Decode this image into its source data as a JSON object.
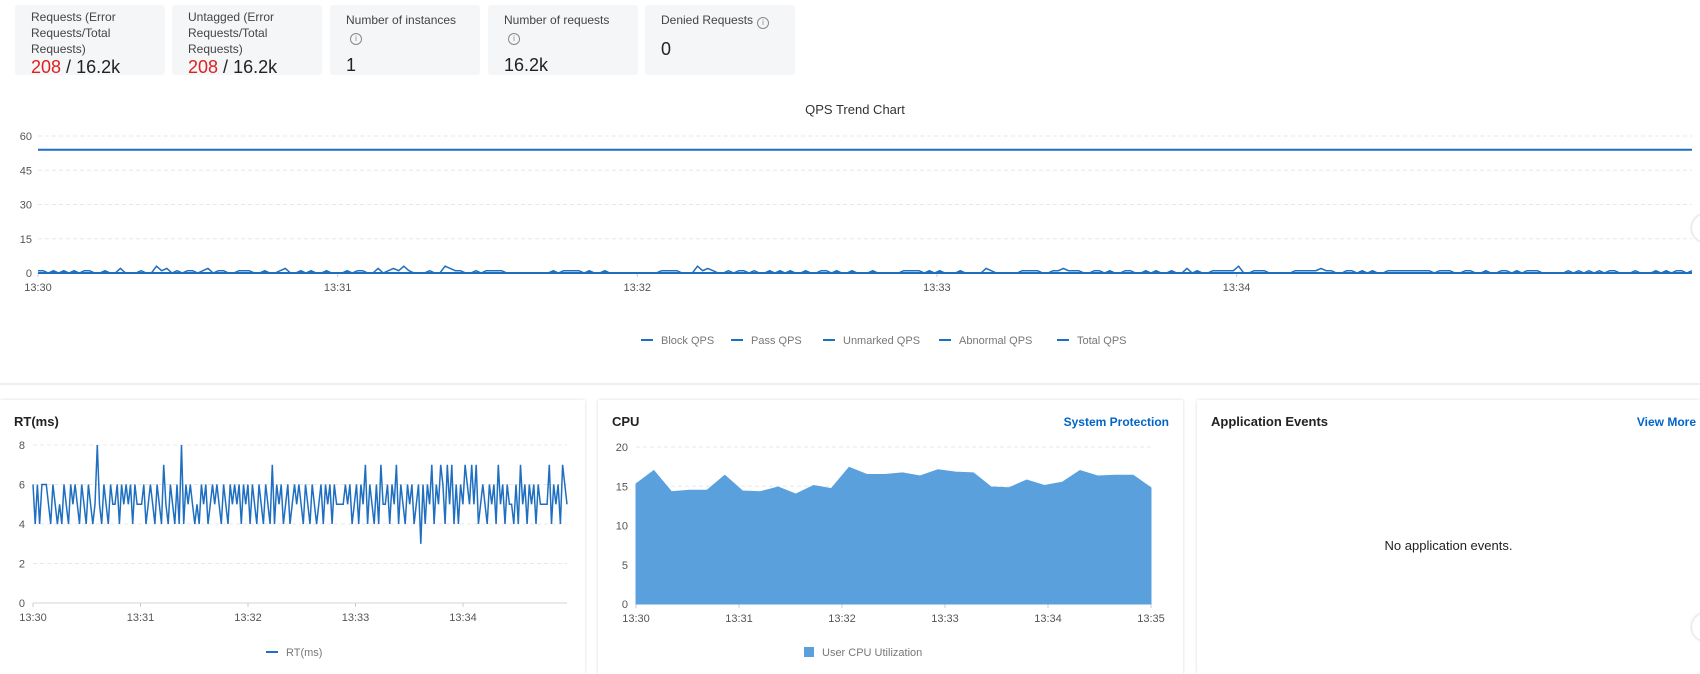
{
  "summary_cards": [
    {
      "label": "Requests (Error Requests/Total Requests)",
      "error_value": "208",
      "separator": " / ",
      "total_value": "16.2k",
      "has_info": true
    },
    {
      "label": "Untagged (Error Requests/Total Requests)",
      "error_value": "208",
      "separator": " / ",
      "total_value": "16.2k",
      "has_info": true
    },
    {
      "label": "Number of instances",
      "value": "1",
      "has_info": true
    },
    {
      "label": "Number of requests",
      "value": "16.2k",
      "has_info": true
    },
    {
      "label": "Denied Requests",
      "value": "0",
      "has_info": true
    }
  ],
  "colors": {
    "series_blue": "#1f6fc0",
    "area_blue": "#5aa0dd",
    "error_red": "#e02020",
    "link_blue": "#0064c8"
  },
  "chart_data": [
    {
      "type": "line",
      "title": "QPS Trend Chart",
      "x_ticks": [
        "13:30",
        "13:31",
        "13:32",
        "13:33",
        "13:34"
      ],
      "y_ticks": [
        "0",
        "15",
        "30",
        "45",
        "60"
      ],
      "ylim": [
        0,
        60
      ],
      "grid": true,
      "legend_position": "bottom-center",
      "series_names": [
        "Block QPS",
        "Pass QPS",
        "Unmarked QPS",
        "Abnormal QPS",
        "Total QPS"
      ],
      "flat_line_value": 54,
      "low_series_values": [
        1,
        1,
        0,
        1,
        0,
        1,
        0,
        1,
        0,
        1,
        1,
        0,
        0,
        1,
        0,
        0,
        2,
        0,
        0,
        0,
        1,
        0,
        0,
        3,
        1,
        2,
        0,
        1,
        0,
        1,
        1,
        0,
        1,
        2,
        0,
        1,
        1,
        0,
        0,
        1,
        1,
        1,
        0,
        0,
        1,
        0,
        0,
        1,
        2,
        0,
        0,
        1,
        0,
        1,
        0,
        0,
        1,
        0,
        0,
        0,
        1,
        0,
        1,
        1,
        0,
        0,
        2,
        0,
        1,
        2,
        1,
        3,
        1,
        0,
        0,
        0,
        1,
        0,
        0,
        3,
        2,
        1,
        1,
        0,
        0,
        1,
        0,
        1,
        1,
        1,
        1,
        0,
        0,
        0,
        0,
        0,
        0,
        0,
        0,
        0,
        1,
        0,
        1,
        1,
        1,
        1,
        0,
        1,
        0,
        0,
        1,
        0,
        0,
        0,
        0,
        0,
        0,
        0,
        0,
        0,
        0,
        1,
        1,
        1,
        1,
        0,
        0,
        0,
        3,
        1,
        2,
        1,
        0,
        0,
        1,
        0,
        1,
        1,
        0,
        1,
        0,
        0,
        1,
        0,
        1,
        0,
        1,
        0,
        0,
        1,
        0,
        0,
        1,
        1,
        0,
        1,
        0,
        0,
        1,
        0,
        0,
        0,
        1,
        0,
        0,
        0,
        0,
        0,
        1,
        1,
        1,
        1,
        0,
        1,
        0,
        1,
        0,
        0,
        0,
        1,
        0,
        0,
        0,
        0,
        2,
        1,
        0,
        0,
        0,
        0,
        0,
        1,
        1,
        1,
        1,
        0,
        0,
        1,
        1,
        2,
        1,
        1,
        1,
        0,
        0,
        1,
        1,
        0,
        1,
        0,
        0,
        1,
        1,
        0,
        0,
        1,
        0,
        1,
        0,
        0,
        1,
        0,
        0,
        2,
        0,
        1,
        0,
        0,
        1,
        1,
        1,
        1,
        1,
        3,
        0,
        0,
        1,
        1,
        1,
        0,
        0,
        0,
        0,
        0,
        1,
        1,
        1,
        1,
        1,
        2,
        1,
        1,
        0,
        0,
        1,
        1,
        0,
        1,
        0,
        1,
        0,
        0,
        1,
        1,
        1,
        1,
        1,
        1,
        1,
        1,
        1,
        0,
        1,
        1,
        1,
        0,
        0,
        1,
        1,
        0,
        0,
        1,
        0,
        0,
        1,
        1,
        0,
        1,
        0,
        1,
        1,
        1,
        0,
        0,
        0,
        0,
        0,
        1,
        0,
        1,
        0,
        1,
        0,
        1,
        0,
        1,
        1,
        0,
        0,
        0,
        1,
        0,
        0,
        0,
        1,
        0,
        1,
        0,
        1,
        1,
        0,
        1
      ]
    },
    {
      "type": "line",
      "title": "RT(ms)",
      "x_ticks": [
        "13:30",
        "13:31",
        "13:32",
        "13:33",
        "13:34"
      ],
      "y_ticks": [
        "0",
        "2",
        "4",
        "6",
        "8"
      ],
      "ylim": [
        0,
        8
      ],
      "grid": true,
      "legend_position": "bottom-center",
      "series": [
        {
          "name": "RT(ms)",
          "values": [
            6,
            4,
            6,
            4,
            6,
            6,
            6,
            5,
            4,
            6,
            5,
            4,
            5,
            4,
            6,
            5,
            4,
            6,
            5,
            6,
            5,
            4,
            6,
            5,
            4,
            6,
            5,
            4,
            5,
            8,
            5,
            4,
            6,
            5,
            4,
            6,
            5,
            5,
            6,
            4,
            6,
            5,
            6,
            5,
            6,
            4,
            6,
            5,
            5,
            5,
            6,
            4,
            5,
            6,
            5,
            4,
            6,
            5,
            4,
            7,
            5,
            4,
            6,
            5,
            4,
            6,
            4,
            8,
            4,
            6,
            5,
            6,
            5,
            4,
            5,
            4,
            6,
            5,
            6,
            4,
            5,
            6,
            5,
            6,
            5,
            4,
            6,
            5,
            4,
            6,
            5,
            6,
            5,
            6,
            4,
            6,
            5,
            6,
            4,
            6,
            5,
            4,
            6,
            5,
            4,
            6,
            5,
            4,
            7,
            4,
            6,
            5,
            6,
            4,
            5,
            6,
            4,
            5,
            6,
            5,
            6,
            5,
            4,
            6,
            5,
            4,
            6,
            5,
            4,
            5,
            6,
            4,
            6,
            5,
            6,
            4,
            6,
            5,
            5,
            5,
            5,
            6,
            5,
            6,
            4,
            5,
            6,
            4,
            6,
            5,
            7,
            4,
            6,
            5,
            4,
            6,
            4,
            7,
            5,
            5,
            6,
            4,
            6,
            5,
            7,
            4,
            6,
            5,
            4,
            6,
            5,
            6,
            4,
            5,
            6,
            3,
            6,
            4,
            6,
            5,
            7,
            4,
            6,
            5,
            7,
            6,
            4,
            7,
            5,
            7,
            4,
            6,
            4,
            6,
            5,
            7,
            6,
            5,
            7,
            5,
            7,
            4,
            5,
            6,
            5,
            4,
            6,
            5,
            6,
            4,
            7,
            5,
            6,
            4,
            6,
            5,
            5,
            4,
            6,
            4,
            7,
            5,
            6,
            4,
            6,
            5,
            6,
            4,
            6,
            5,
            5,
            5,
            5,
            7,
            4,
            6,
            5,
            6,
            4,
            7,
            6,
            5
          ]
        }
      ]
    },
    {
      "type": "area",
      "title": "CPU",
      "x_ticks": [
        "13:30",
        "13:31",
        "13:32",
        "13:33",
        "13:34",
        "13:35"
      ],
      "y_ticks": [
        "0",
        "5",
        "10",
        "15",
        "20"
      ],
      "ylim": [
        0,
        20
      ],
      "grid": true,
      "legend_position": "bottom-center",
      "series": [
        {
          "name": "User CPU Utilization",
          "values": [
            15.3,
            17.0,
            14.3,
            14.5,
            14.5,
            16.4,
            14.4,
            14.3,
            14.9,
            14.0,
            15.1,
            14.7,
            17.4,
            16.5,
            16.5,
            16.7,
            16.3,
            17.1,
            16.8,
            16.7,
            14.9,
            14.8,
            15.8,
            15.1,
            15.5,
            17.0,
            16.3,
            16.4,
            16.4,
            14.8
          ]
        }
      ]
    }
  ],
  "panels": {
    "rt": {
      "title": "RT(ms)",
      "legend": "RT(ms)"
    },
    "cpu": {
      "title": "CPU",
      "link": "System Protection",
      "legend": "User CPU Utilization"
    },
    "events": {
      "title": "Application Events",
      "link": "View More",
      "empty_text": "No application events."
    }
  }
}
